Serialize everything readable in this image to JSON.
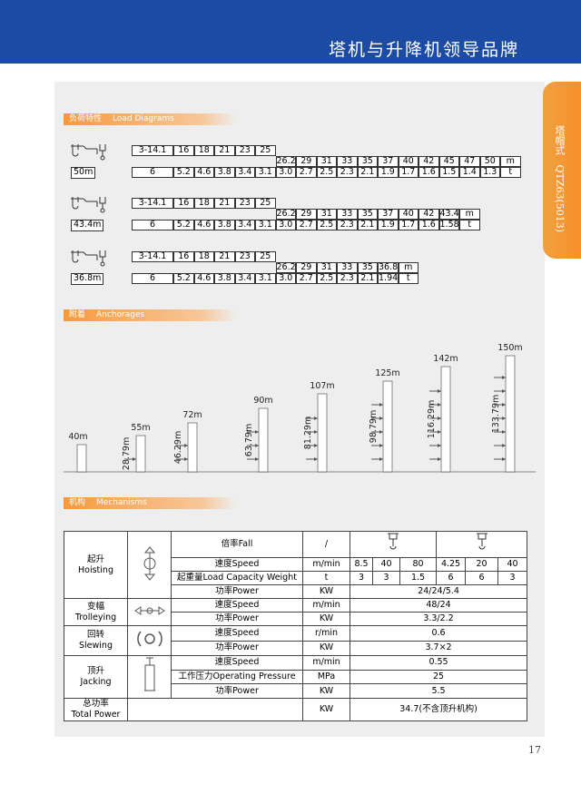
{
  "header": {
    "title": "塔机与升降机领导品牌"
  },
  "side_tab": {
    "label": "塔帽式",
    "model": "QTZ63(5013)"
  },
  "load_diagrams": {
    "title": "负荷特性",
    "title_en": "Load Diagrams",
    "tables": [
      {
        "jib": "50m",
        "radius_row1": [
          "3-14.1",
          "16",
          "18",
          "21",
          "23",
          "25"
        ],
        "radius_row2": [
          "26.2",
          "29",
          "31",
          "33",
          "35",
          "37",
          "40",
          "42",
          "45",
          "47",
          "50",
          "m"
        ],
        "loads": [
          "6",
          "5.2",
          "4.6",
          "3.8",
          "3.4",
          "3.1",
          "3.0",
          "2.7",
          "2.5",
          "2.3",
          "2.1",
          "1.9",
          "1.7",
          "1.6",
          "1.5",
          "1.4",
          "1.3",
          "t"
        ]
      },
      {
        "jib": "43.4m",
        "radius_row1": [
          "3-14.1",
          "16",
          "18",
          "21",
          "23",
          "25"
        ],
        "radius_row2": [
          "26.2",
          "29",
          "31",
          "33",
          "35",
          "37",
          "40",
          "42",
          "43.4",
          "m"
        ],
        "loads": [
          "6",
          "5.2",
          "4.6",
          "3.8",
          "3.4",
          "3.1",
          "3.0",
          "2.7",
          "2.5",
          "2.3",
          "2.1",
          "1.9",
          "1.7",
          "1.6",
          "1.58",
          "t"
        ]
      },
      {
        "jib": "36.8m",
        "radius_row1": [
          "3-14.1",
          "16",
          "18",
          "21",
          "23",
          "25"
        ],
        "radius_row2": [
          "26.2",
          "29",
          "31",
          "33",
          "35",
          "36.8",
          "m"
        ],
        "loads": [
          "6",
          "5.2",
          "4.6",
          "3.8",
          "3.4",
          "3.1",
          "3.0",
          "2.7",
          "2.5",
          "2.3",
          "2.1",
          "1.94",
          "t"
        ]
      }
    ]
  },
  "anchorages": {
    "title": "附着",
    "title_en": "Anchorages",
    "towers": [
      {
        "height": "40m"
      },
      {
        "height": "55m",
        "anchor": "28.79m"
      },
      {
        "height": "72m",
        "anchor": "46.29m"
      },
      {
        "height": "90m",
        "anchor": "63.79m"
      },
      {
        "height": "107m",
        "anchor": "81.29m"
      },
      {
        "height": "125m",
        "anchor": "98.79m"
      },
      {
        "height": "142m",
        "anchor": "116.29m"
      },
      {
        "height": "150m",
        "anchor": "133.79m"
      }
    ]
  },
  "mechanisms": {
    "title": "机构",
    "title_en": "Mechanisms",
    "groups": [
      {
        "name": "起升",
        "name_en": "Hoisting",
        "rows": [
          {
            "param": "倍率Fall",
            "unit": "/"
          },
          {
            "param": "速度Speed",
            "unit": "m/min",
            "values": [
              "8.5",
              "40",
              "80",
              "4.25",
              "20",
              "40"
            ]
          },
          {
            "param": "起重量Load Capacity Weight",
            "unit": "t",
            "values": [
              "3",
              "3",
              "1.5",
              "6",
              "6",
              "3"
            ]
          },
          {
            "param": "功率Power",
            "unit": "KW",
            "values": [
              "24/24/5.4"
            ]
          }
        ]
      },
      {
        "name": "变幅",
        "name_en": "Trolleying",
        "rows": [
          {
            "param": "速度Speed",
            "unit": "m/min",
            "values": [
              "48/24"
            ]
          },
          {
            "param": "功率Power",
            "unit": "KW",
            "values": [
              "3.3/2.2"
            ]
          }
        ]
      },
      {
        "name": "回转",
        "name_en": "Slewing",
        "rows": [
          {
            "param": "速度Speed",
            "unit": "r/min",
            "values": [
              "0.6"
            ]
          },
          {
            "param": "功率Power",
            "unit": "KW",
            "values": [
              "3.7×2"
            ]
          }
        ]
      },
      {
        "name": "顶升",
        "name_en": "Jacking",
        "rows": [
          {
            "param": "速度Speed",
            "unit": "m/min",
            "values": [
              "0.55"
            ]
          },
          {
            "param": "工作压力Operating Pressure",
            "unit": "MPa",
            "values": [
              "25"
            ]
          },
          {
            "param": "功率Power",
            "unit": "KW",
            "values": [
              "5.5"
            ]
          }
        ]
      }
    ],
    "total": {
      "name": "总功率",
      "name_en": "Total Power",
      "unit": "KW",
      "value": "34.7(不含顶升机构)"
    }
  },
  "page_number": "17"
}
